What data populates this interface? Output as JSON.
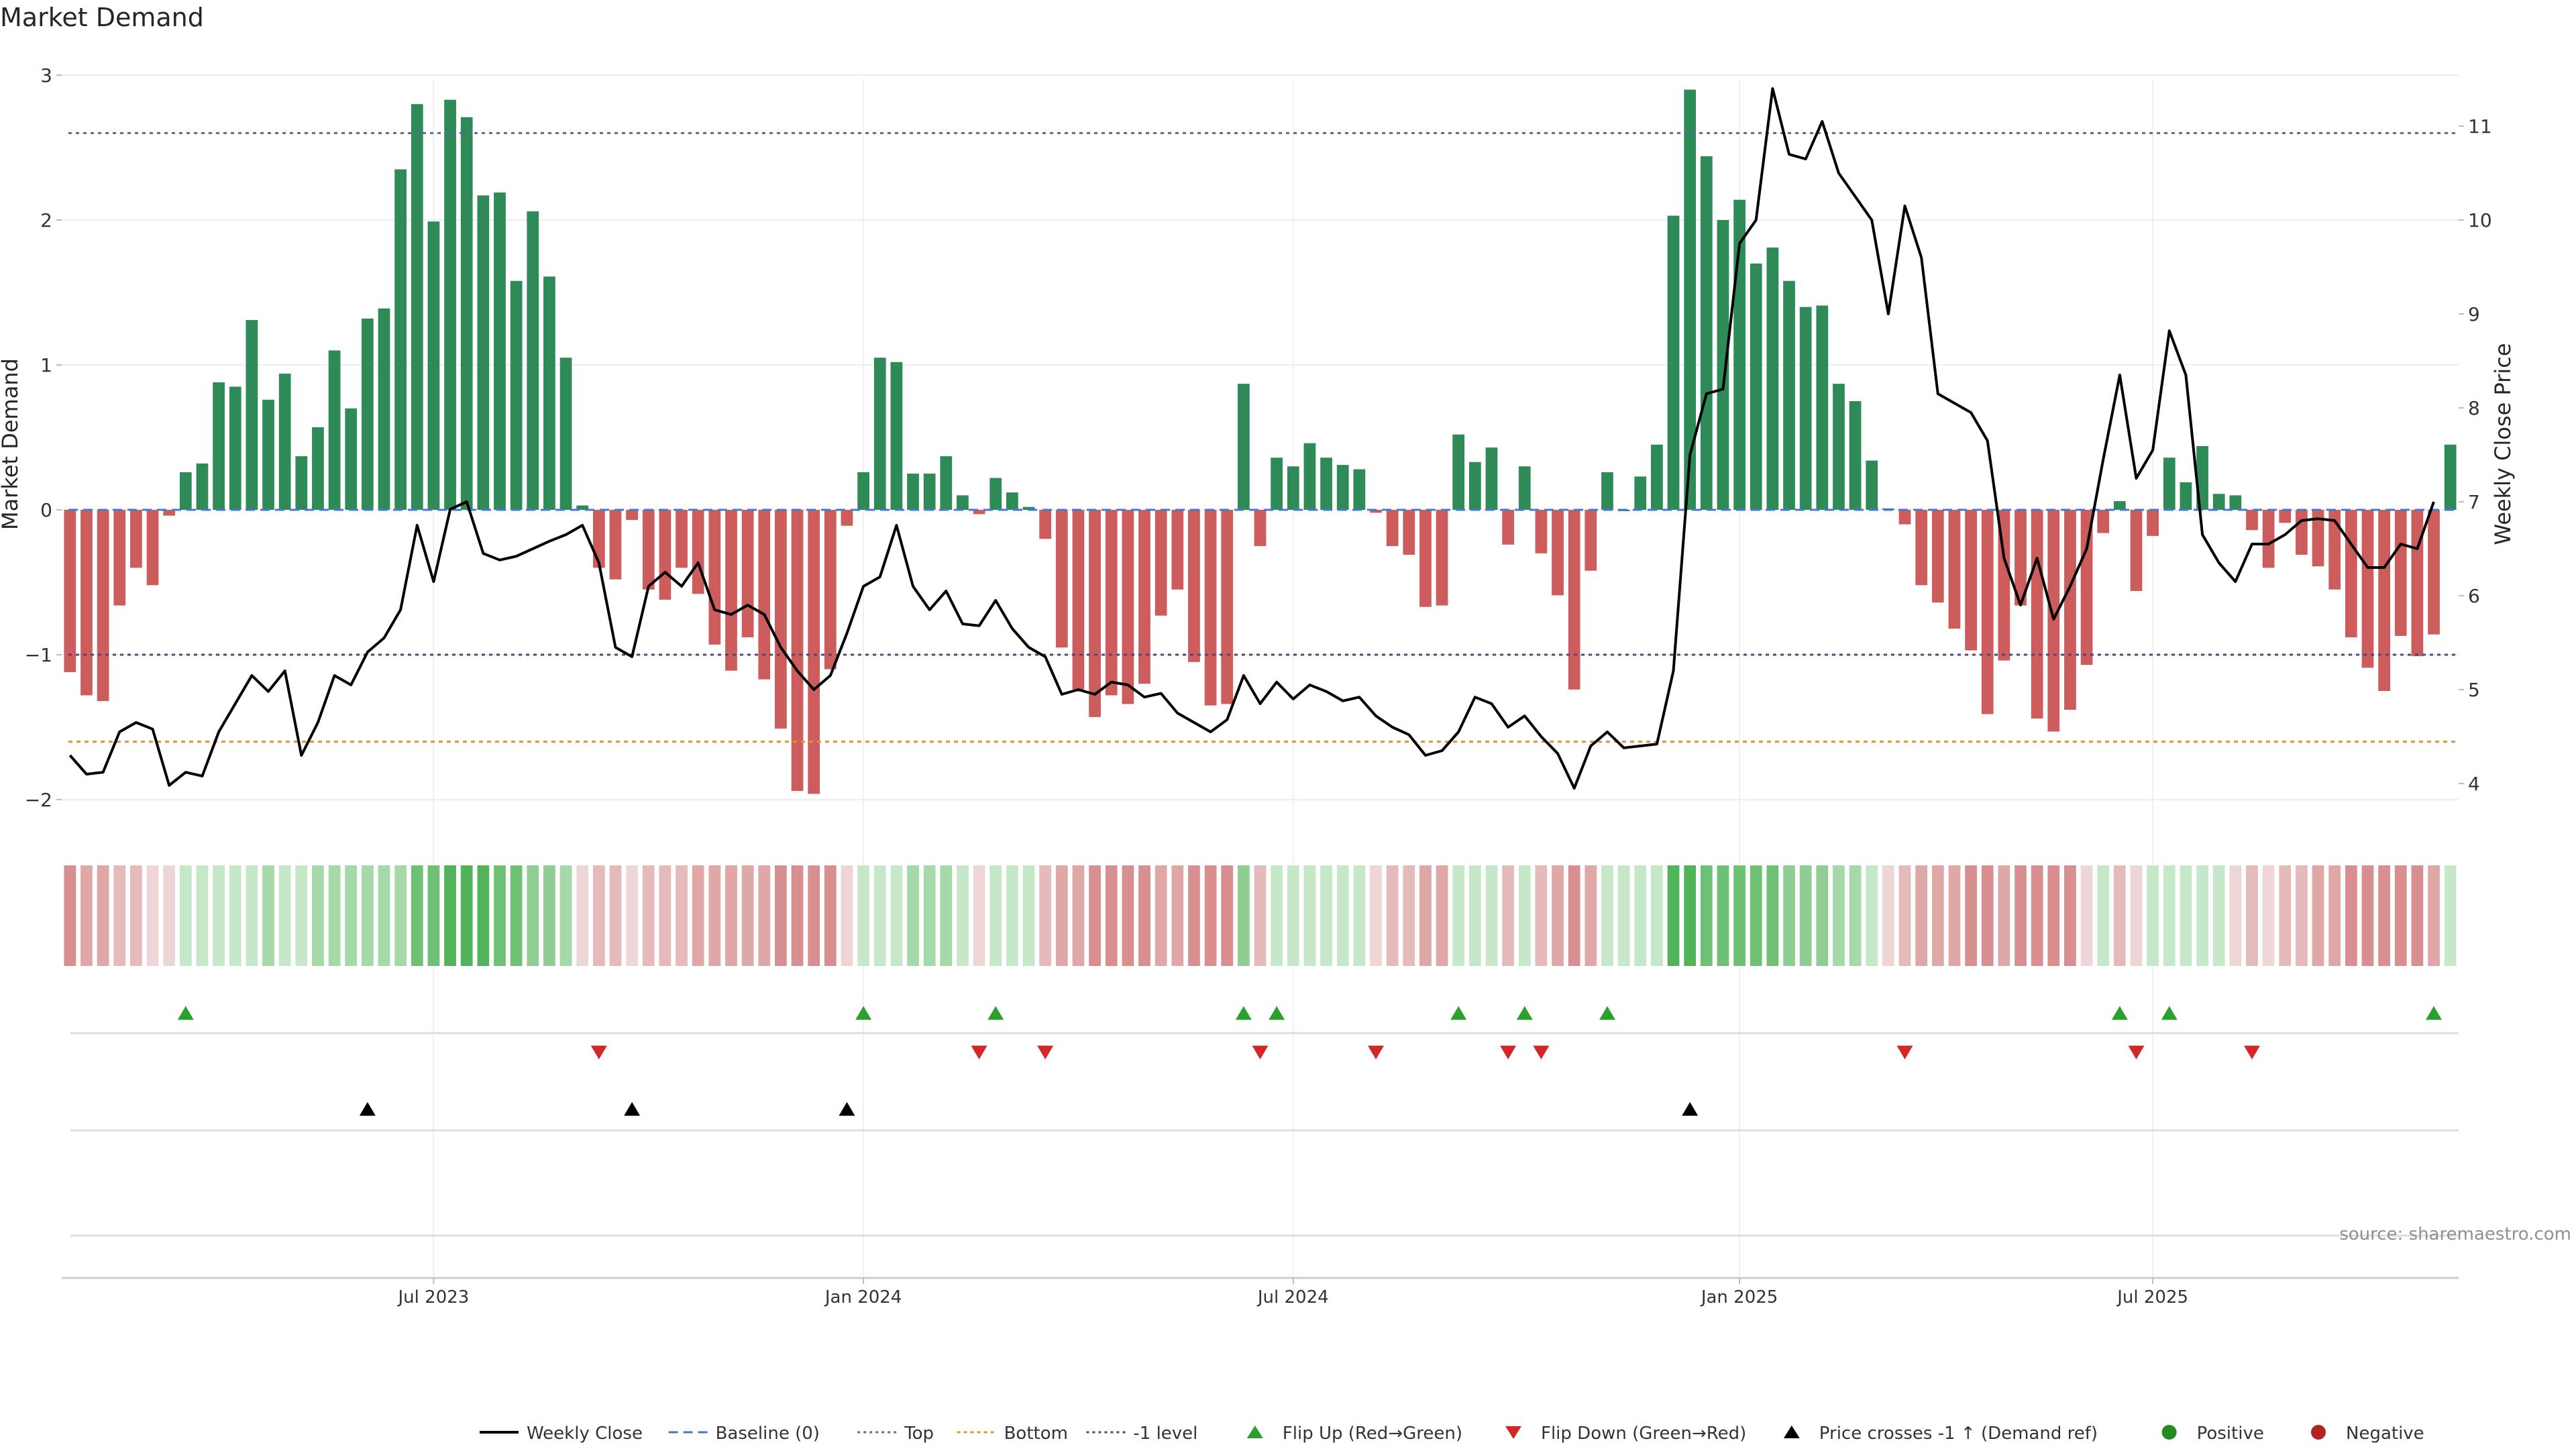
{
  "chart_data": {
    "type": "bar",
    "title": "Market Demand",
    "ylabel": "Market Demand",
    "y2label": "Weekly Close Price",
    "source": "source: sharemaestro.com",
    "ylim": [
      -2.2,
      3.1
    ],
    "y2lim": [
      3.8,
      11.6
    ],
    "yticks": [
      3,
      2,
      1,
      0,
      -1,
      -2
    ],
    "ytick_labels": [
      "3",
      "2",
      "1",
      "0",
      "−1",
      "−2"
    ],
    "y2ticks": [
      11,
      10,
      9,
      8,
      7,
      6,
      5,
      4
    ],
    "y2tick_labels": [
      "11",
      "10",
      "9",
      "8",
      "7",
      "6",
      "5",
      "4"
    ],
    "xticks": [
      {
        "week": 22,
        "label": "Jul 2023"
      },
      {
        "week": 48,
        "label": "Jan 2024"
      },
      {
        "week": 74,
        "label": "Jul 2024"
      },
      {
        "week": 101,
        "label": "Jan 2025"
      },
      {
        "week": 126,
        "label": "Jul 2025"
      }
    ],
    "reference_lines": {
      "top": 2.6,
      "bottom": -1.6,
      "minus_one": -1.0,
      "baseline": 0
    },
    "demand": [
      -1.12,
      -1.28,
      -1.32,
      -0.66,
      -0.4,
      -0.52,
      -0.04,
      0.26,
      0.32,
      0.88,
      0.85,
      1.31,
      0.76,
      0.94,
      0.37,
      0.57,
      1.1,
      0.7,
      1.32,
      1.39,
      2.35,
      2.8,
      1.99,
      2.83,
      2.71,
      2.17,
      2.19,
      1.58,
      2.06,
      1.61,
      1.05,
      0.03,
      -0.4,
      -0.48,
      -0.07,
      -0.55,
      -0.62,
      -0.4,
      -0.58,
      -0.93,
      -1.11,
      -0.88,
      -1.17,
      -1.51,
      -1.94,
      -1.96,
      -1.1,
      -0.11,
      0.26,
      1.05,
      1.02,
      0.25,
      0.25,
      0.37,
      0.1,
      -0.03,
      0.22,
      0.12,
      0.02,
      -0.2,
      -0.95,
      -1.24,
      -1.43,
      -1.28,
      -1.34,
      -1.2,
      -0.73,
      -0.55,
      -1.05,
      -1.35,
      -1.34,
      0.87,
      -0.25,
      0.36,
      0.3,
      0.46,
      0.36,
      0.31,
      0.28,
      -0.02,
      -0.25,
      -0.31,
      -0.67,
      -0.66,
      0.52,
      0.33,
      0.43,
      -0.24,
      0.3,
      -0.3,
      -0.59,
      -1.24,
      -0.42,
      0.26,
      0.0,
      0.23,
      0.45,
      2.03,
      2.9,
      2.44,
      2.0,
      2.14,
      1.7,
      1.81,
      1.58,
      1.4,
      1.41,
      0.87,
      0.75,
      0.34,
      0.01,
      -0.1,
      -0.52,
      -0.64,
      -0.82,
      -0.97,
      -1.41,
      -1.04,
      -0.66,
      -1.44,
      -1.53,
      -1.38,
      -1.07,
      -0.16,
      0.06,
      -0.56,
      -0.18,
      0.36,
      0.19,
      0.44,
      0.11,
      0.1,
      -0.14,
      -0.4,
      -0.09,
      -0.31,
      -0.39,
      -0.55,
      -0.88,
      -1.09,
      -1.25,
      -0.87,
      -1.01,
      -0.86,
      0.45
    ],
    "weekly_close": [
      4.3,
      4.1,
      4.12,
      4.55,
      4.65,
      4.58,
      3.98,
      4.12,
      4.08,
      4.55,
      4.85,
      5.15,
      4.98,
      5.2,
      4.3,
      4.65,
      5.15,
      5.05,
      5.4,
      5.55,
      5.85,
      6.75,
      6.15,
      6.92,
      7.0,
      6.45,
      6.38,
      6.42,
      6.5,
      6.58,
      6.65,
      6.75,
      6.35,
      5.45,
      5.35,
      6.1,
      6.25,
      6.1,
      6.35,
      5.85,
      5.8,
      5.9,
      5.8,
      5.45,
      5.2,
      5.0,
      5.15,
      5.6,
      6.1,
      6.2,
      6.75,
      6.1,
      5.85,
      6.05,
      5.7,
      5.68,
      5.95,
      5.65,
      5.45,
      5.35,
      4.95,
      5.0,
      4.95,
      5.08,
      5.05,
      4.92,
      4.96,
      4.75,
      4.65,
      4.55,
      4.68,
      5.15,
      4.85,
      5.08,
      4.9,
      5.05,
      4.98,
      4.88,
      4.92,
      4.72,
      4.6,
      4.52,
      4.3,
      4.35,
      4.55,
      4.92,
      4.85,
      4.6,
      4.72,
      4.5,
      4.32,
      3.95,
      4.4,
      4.55,
      4.38,
      4.4,
      4.42,
      5.2,
      7.5,
      8.15,
      8.2,
      9.75,
      10.0,
      11.4,
      10.7,
      10.65,
      11.05,
      10.5,
      10.25,
      10.0,
      9.0,
      10.15,
      9.6,
      8.15,
      8.05,
      7.95,
      7.65,
      6.4,
      5.9,
      6.4,
      5.75,
      6.1,
      6.5,
      7.45,
      8.35,
      7.25,
      7.55,
      8.82,
      8.35,
      6.65,
      6.35,
      6.15,
      6.55,
      6.55,
      6.65,
      6.8,
      6.82,
      6.8,
      6.55,
      6.3,
      6.3,
      6.55,
      6.5,
      7.0
    ],
    "band_colors": [
      "#d98f8f",
      "#e0a7a7",
      "#e5baba",
      "#efd6d6",
      "#a5d9a9",
      "#c6e7c8"
    ],
    "band": [
      1,
      2,
      2,
      3,
      3,
      4,
      4,
      6,
      6,
      6,
      6,
      6,
      5,
      6,
      6,
      5,
      5,
      5,
      5,
      5,
      5,
      "#6dc074",
      "#6dc074",
      "#52b45a",
      "#52b45a",
      "#52b45a",
      "#6dc074",
      "#6dc074",
      "#8fcd93",
      "#8fcd93",
      "#a5d9a9",
      4,
      3,
      3,
      4,
      3,
      3,
      3,
      2,
      2,
      2,
      2,
      2,
      1,
      1,
      1,
      1,
      4,
      6,
      6,
      6,
      5,
      5,
      5,
      6,
      4,
      6,
      6,
      6,
      3,
      2,
      2,
      1,
      1,
      1,
      1,
      2,
      2,
      1,
      1,
      1,
      "#8fcd93",
      3,
      6,
      6,
      6,
      6,
      6,
      6,
      4,
      3,
      3,
      2,
      2,
      6,
      6,
      6,
      3,
      6,
      3,
      2,
      1,
      2,
      6,
      6,
      6,
      6,
      "#52b45a",
      "#52b45a",
      "#6dc074",
      "#6dc074",
      "#6dc074",
      "#6dc074",
      "#6dc074",
      "#8fcd93",
      "#8fcd93",
      "#8fcd93",
      "#a5d9a9",
      "#a5d9a9",
      "#c6e7c8",
      4,
      3,
      2,
      2,
      2,
      1,
      1,
      2,
      1,
      1,
      1,
      1,
      4,
      6,
      3,
      4,
      6,
      6,
      6,
      6,
      6,
      4,
      3,
      4,
      3,
      3,
      2,
      2,
      1,
      1,
      1,
      1,
      1,
      2,
      6
    ],
    "flip_up_weeks": [
      7,
      48,
      56,
      71,
      73,
      84,
      88,
      93,
      124,
      127,
      143
    ],
    "flip_down_weeks": [
      32,
      55,
      59,
      72,
      79,
      87,
      89,
      111,
      125,
      132
    ],
    "price_cross_weeks": [
      18,
      34,
      47,
      98
    ],
    "colors": {
      "positive": "#2e8b57",
      "negative": "#cd5c5c",
      "flip_up": "#2ca02c",
      "flip_down": "#d62728",
      "top_line": "#6b5fa6",
      "bottom_line": "#e69138",
      "minus_one_line": "#4a4a7a",
      "baseline_line": "#4a79c8",
      "price": "#000000"
    },
    "legend": [
      {
        "key": "weekly-close",
        "label": "Weekly Close"
      },
      {
        "key": "baseline",
        "label": "Baseline (0)"
      },
      {
        "key": "top",
        "label": "Top"
      },
      {
        "key": "bottom",
        "label": "Bottom"
      },
      {
        "key": "minus-one",
        "label": "-1 level"
      },
      {
        "key": "flip-up",
        "label": "Flip Up (Red→Green)"
      },
      {
        "key": "flip-down",
        "label": "Flip Down (Green→Red)"
      },
      {
        "key": "price-cross",
        "label": "Price crosses -1 ↑ (Demand ref)"
      },
      {
        "key": "positive",
        "label": "Positive"
      },
      {
        "key": "negative",
        "label": "Negative"
      }
    ]
  }
}
